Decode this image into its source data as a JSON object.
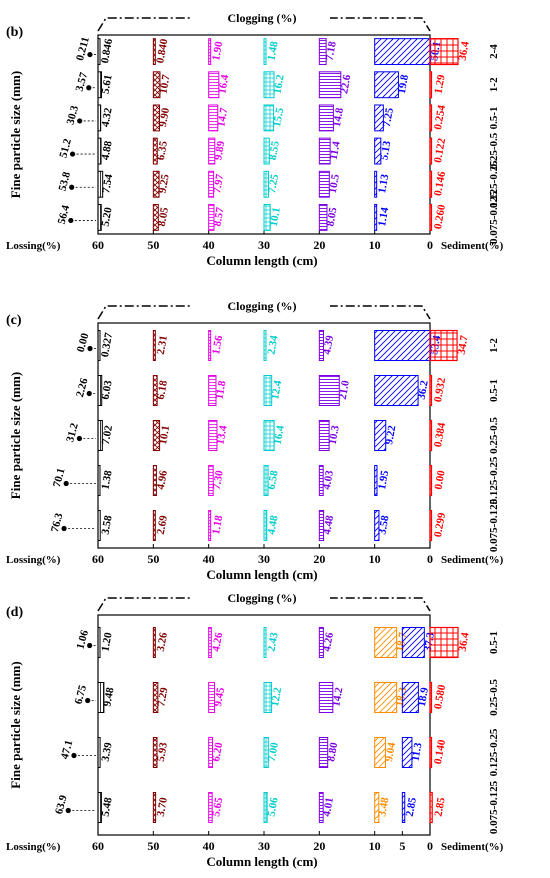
{
  "colors": {
    "frame": "#000000",
    "col60": "#000000",
    "col50": "#800000",
    "col40": "#e600e6",
    "col30": "#00cccc",
    "col20": "#7a00e6",
    "col10": "#0000ff",
    "col10_orange": "#ff8c00",
    "col5": "#0000ff",
    "sediment": "#ff0000"
  },
  "chart_data": [
    {
      "type": "bar",
      "panel_label": "(b)",
      "title": "Clogging (%)",
      "xlabel": "Column length (cm)",
      "ylabel": "Fine particle size (mm)",
      "left_label": "Lossing(%)",
      "right_label": "Sediment(%)",
      "column_ticks": [
        "60",
        "50",
        "40",
        "30",
        "20",
        "10",
        "0"
      ],
      "categories": [
        "2-4",
        "1-2",
        "0.5-1",
        "0.25-0.5",
        "0.125-0.25",
        "0.075-0.125"
      ],
      "lossing": [
        "0.211",
        "3.57",
        "30.3",
        "51.2",
        "53.8",
        "56.4"
      ],
      "series": [
        {
          "name": "60",
          "values": [
            "0.846",
            "5.61",
            "4.32",
            "4.88",
            "7.54",
            "5.20"
          ]
        },
        {
          "name": "50",
          "values": [
            "0.840",
            "10.7",
            "9.90",
            "6.35",
            "9.25",
            "8.05"
          ]
        },
        {
          "name": "40",
          "values": [
            "1.90",
            "16.4",
            "14.7",
            "9.89",
            "7.97",
            "8.57"
          ]
        },
        {
          "name": "30",
          "values": [
            "1.48",
            "16.2",
            "15.5",
            "8.55",
            "7.25",
            "10.1"
          ]
        },
        {
          "name": "20",
          "values": [
            "7.18",
            "22.6",
            "14.8",
            "11.4",
            "10.5",
            "8.05"
          ]
        },
        {
          "name": "10",
          "values": [
            "50.1",
            "19.8",
            "7.25",
            "5.13",
            "1.13",
            "1.14"
          ]
        }
      ],
      "sediment": [
        "36.4",
        "1.29",
        "0.254",
        "0.122",
        "0.146",
        "0.260"
      ]
    },
    {
      "type": "bar",
      "panel_label": "(c)",
      "title": "Clogging (%)",
      "xlabel": "Column length (cm)",
      "ylabel": "Fine particle size (mm)",
      "left_label": "Lossing(%)",
      "right_label": "Sediment(%)",
      "column_ticks": [
        "60",
        "50",
        "40",
        "30",
        "20",
        "10",
        "0"
      ],
      "categories": [
        "1-2",
        "0.5-1",
        "0.25-0.5",
        "0.125-0.25",
        "0.075-0.125"
      ],
      "lossing": [
        "0.00",
        "2.26",
        "31.2",
        "70.1",
        "76.3"
      ],
      "series": [
        {
          "name": "60",
          "values": [
            "0.327",
            "6.03",
            "7.02",
            "1.38",
            "3.58"
          ]
        },
        {
          "name": "50",
          "values": [
            "2.31",
            "6.18",
            "10.1",
            "4.96",
            "2.69"
          ]
        },
        {
          "name": "40",
          "values": [
            "1.56",
            "11.8",
            "13.4",
            "7.30",
            "1.18"
          ]
        },
        {
          "name": "30",
          "values": [
            "2.34",
            "12.4",
            "16.4",
            "6.58",
            "4.48"
          ]
        },
        {
          "name": "20",
          "values": [
            "4.39",
            "21.0",
            "10.3",
            "4.03",
            "4.48"
          ]
        },
        {
          "name": "10",
          "values": [
            "53.4",
            "36.2",
            "9.22",
            "1.95",
            "3.58"
          ]
        }
      ],
      "sediment": [
        "34.7",
        "0.932",
        "0.384",
        "0.00",
        "0.299"
      ]
    },
    {
      "type": "bar",
      "panel_label": "(d)",
      "title": "Clogging (%)",
      "xlabel": "Column length (cm)",
      "ylabel": "Fine particle size (mm)",
      "left_label": "Lossing(%)",
      "right_label": "Sediment(%)",
      "column_ticks": [
        "60",
        "50",
        "40",
        "30",
        "20",
        "10",
        "5",
        "0"
      ],
      "categories": [
        "0.5-1",
        "0.25-0.5",
        "0.125-0.25",
        "0.075-0.125"
      ],
      "lossing": [
        "1.06",
        "6.75",
        "47.1",
        "63.9"
      ],
      "series": [
        {
          "name": "60",
          "values": [
            "1.20",
            "9.48",
            "3.39",
            "5.48"
          ]
        },
        {
          "name": "50",
          "values": [
            "3.26",
            "7.29",
            "5.93",
            "3.70"
          ]
        },
        {
          "name": "40",
          "values": [
            "4.26",
            "9.45",
            "6.20",
            "5.65"
          ]
        },
        {
          "name": "30",
          "values": [
            "2.43",
            "12.2",
            "7.00",
            "5.06"
          ]
        },
        {
          "name": "20",
          "values": [
            "4.26",
            "14.2",
            "8.80",
            "4.01"
          ]
        },
        {
          "name": "10",
          "values": [
            "18.7",
            "18.3",
            "9.04",
            "3.48"
          ]
        },
        {
          "name": "5",
          "values": [
            "37.3",
            "18.9",
            "11.3",
            "2.85"
          ]
        }
      ],
      "sediment": [
        "36.4",
        "0.580",
        "0.140",
        "2.85"
      ]
    }
  ]
}
